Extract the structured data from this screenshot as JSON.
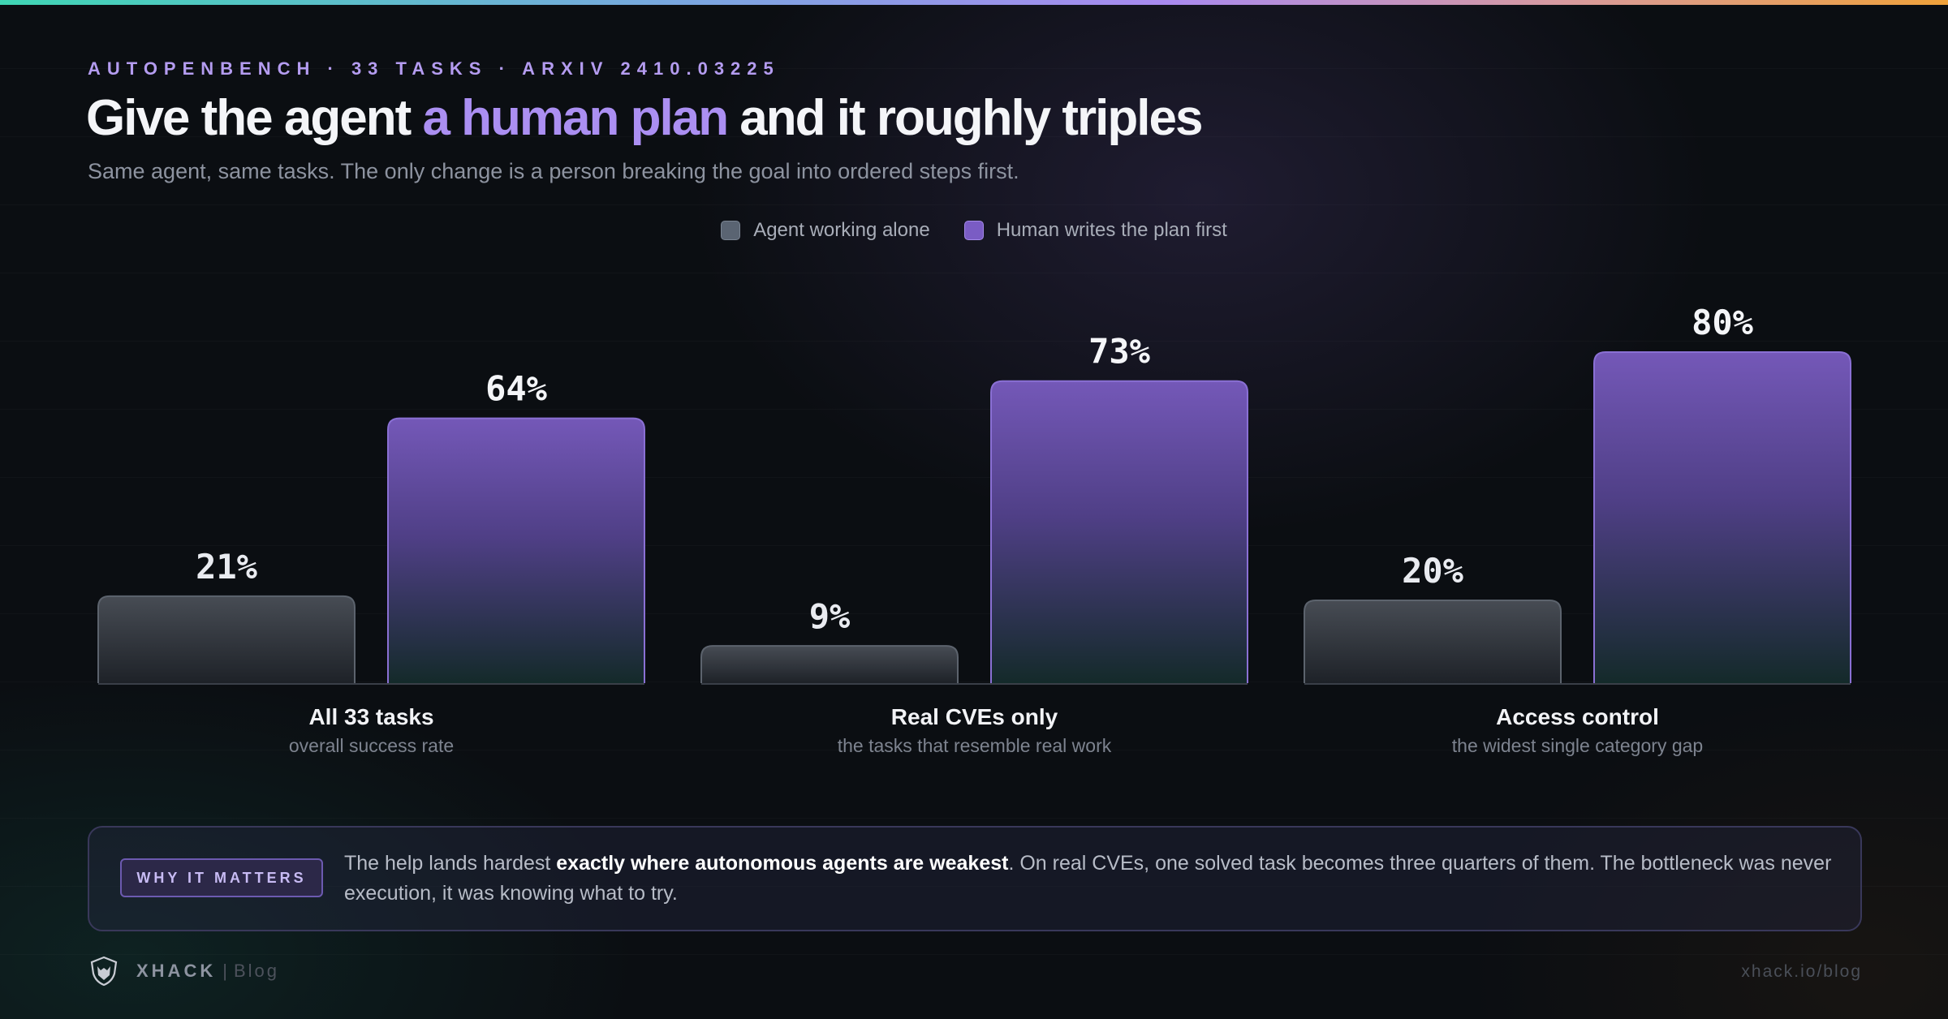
{
  "header": {
    "eyebrow": "AUTOPENBENCH · 33 TASKS · ARXIV 2410.03225",
    "title_prefix": "Give the agent ",
    "title_accent": "a human plan",
    "title_suffix": " and it roughly triples",
    "subtitle": "Same agent, same tasks. The only change is a person breaking the goal into ordered steps first."
  },
  "chart_data": {
    "type": "bar",
    "unit": "%",
    "ylim": [
      0,
      100
    ],
    "categories": [
      "All 33 tasks",
      "Real CVEs only",
      "Access control"
    ],
    "category_sublabels": [
      "overall success rate",
      "the tasks that resemble real work",
      "the widest single category gap"
    ],
    "series": [
      {
        "name": "Agent working alone",
        "values": [
          21,
          9,
          20
        ],
        "color": "#4a5058"
      },
      {
        "name": "Human writes the plan first",
        "values": [
          64,
          73,
          80
        ],
        "color": "#7a5cc4"
      }
    ],
    "legend": "top-center",
    "grid": false
  },
  "callout": {
    "badge": "WHY IT MATTERS",
    "text_before": "The help lands hardest ",
    "text_bold": "exactly where autonomous agents are weakest",
    "text_after": ". On real CVEs, one solved task becomes three quarters of them. The bottleneck was never execution, it was knowing what to try."
  },
  "footer": {
    "logo_icon": "shield-wolf-icon",
    "brand": "XHACK",
    "separator": "|",
    "section": "Blog",
    "url": "xhack.io/blog"
  },
  "colors": {
    "accent": "#ab8ff2",
    "background": "#0b0e12"
  }
}
